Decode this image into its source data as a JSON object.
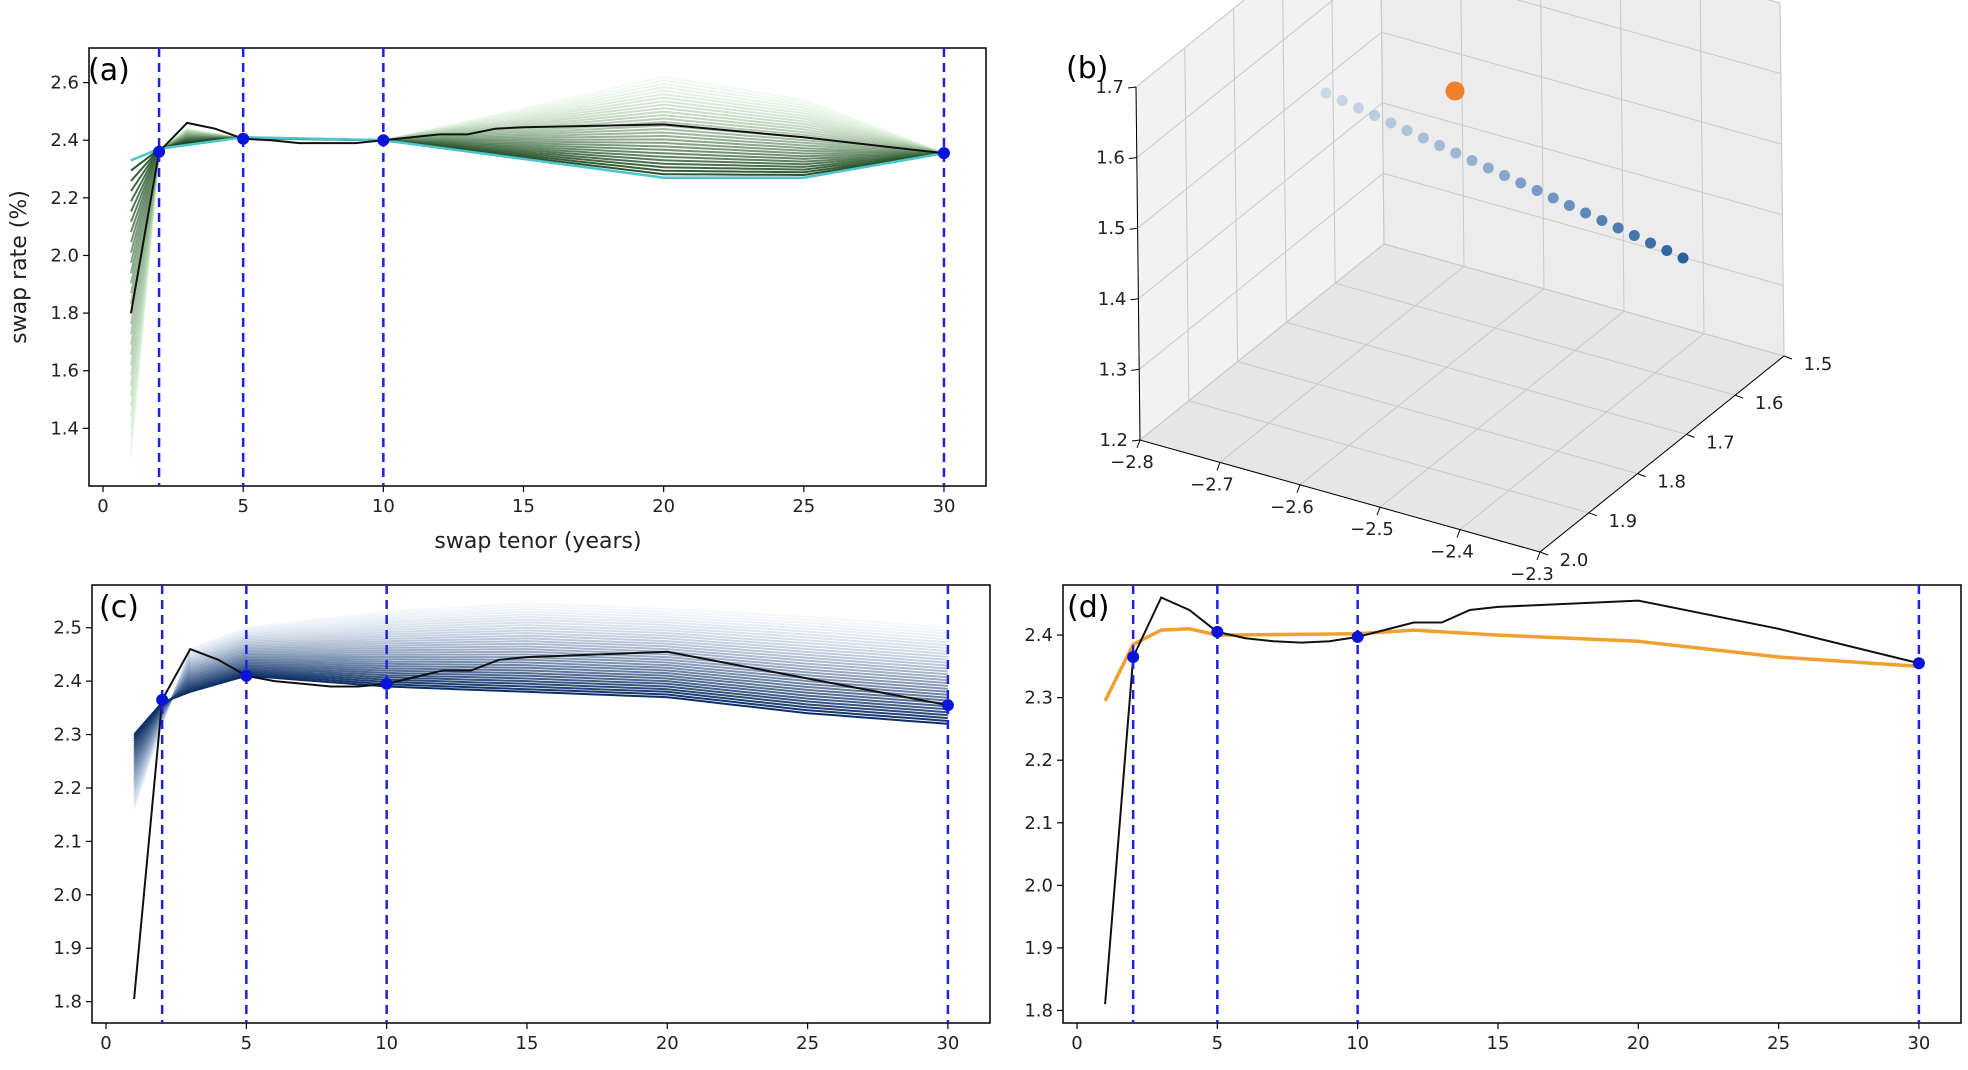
{
  "panels": {
    "a": {
      "label": "(a)",
      "xlabel": "swap tenor (years)",
      "ylabel": "swap rate (%)"
    },
    "b": {
      "label": "(b)"
    },
    "c": {
      "label": "(c)"
    },
    "d": {
      "label": "(d)"
    }
  },
  "colors": {
    "marker_line": "#2020e0",
    "marker_dot": "#0a14d8",
    "black_curve": "#111111",
    "cyan_curve": "#4cc6cc",
    "green_family": "#2e8b3a",
    "blue_family": "#1f4e9c",
    "orange_curve": "#f0a030",
    "scatter_blue": "#3a6fb0",
    "scatter_orange": "#f07f2a"
  },
  "chart_data": [
    {
      "panel": "a",
      "type": "line",
      "xlabel": "swap tenor (years)",
      "ylabel": "swap rate (%)",
      "xlim": [
        -0.5,
        31.5
      ],
      "ylim": [
        1.2,
        2.72
      ],
      "xticks": [
        0,
        5,
        10,
        15,
        20,
        25,
        30
      ],
      "yticks": [
        1.4,
        1.6,
        1.8,
        2.0,
        2.2,
        2.4,
        2.6
      ],
      "vlines": [
        2,
        5,
        10,
        30
      ],
      "markers": {
        "x": [
          2,
          5,
          10,
          30
        ],
        "y": [
          2.36,
          2.405,
          2.4,
          2.355
        ]
      },
      "black_curve": {
        "x": [
          1,
          2,
          3,
          4,
          5,
          6,
          7,
          8,
          9,
          10,
          12,
          13,
          14,
          15,
          20,
          25,
          30
        ],
        "y": [
          1.8,
          2.36,
          2.46,
          2.44,
          2.405,
          2.4,
          2.39,
          2.39,
          2.39,
          2.4,
          2.42,
          2.42,
          2.44,
          2.445,
          2.455,
          2.41,
          2.355
        ]
      },
      "cyan_curve": {
        "x": [
          1,
          2,
          5,
          10,
          20,
          25,
          30
        ],
        "y": [
          2.33,
          2.37,
          2.41,
          2.4,
          2.27,
          2.27,
          2.355
        ]
      },
      "family": {
        "count": 30,
        "color": "green",
        "anchors_x": [
          1,
          2,
          3,
          5,
          10,
          20,
          25,
          30
        ],
        "start": [
          1.3,
          2.36,
          2.44,
          2.405,
          2.4,
          2.62,
          2.54,
          2.355
        ],
        "end": [
          2.33,
          2.37,
          2.39,
          2.41,
          2.4,
          2.27,
          2.27,
          2.355
        ]
      }
    },
    {
      "panel": "b",
      "type": "scatter",
      "zticks": [
        1.2,
        1.3,
        1.4,
        1.5,
        1.6,
        1.7
      ],
      "xticks": [
        -2.8,
        -2.7,
        -2.6,
        -2.5,
        -2.4,
        -2.3
      ],
      "yticks": [
        1.5,
        1.6,
        1.7,
        1.8,
        1.9,
        2.0
      ],
      "xlim": [
        -2.8,
        -2.3
      ],
      "ylim": [
        1.5,
        2.0
      ],
      "zlim": [
        1.2,
        1.7
      ],
      "series": [
        {
          "color": "blue-gradient",
          "x": [
            -2.62,
            -2.45
          ],
          "y": [
            1.66,
            1.5
          ],
          "z": [
            1.74,
            1.53
          ],
          "count": 23
        },
        {
          "color": "orange",
          "x": [
            -2.58
          ],
          "y": [
            1.58
          ],
          "z": [
            1.72
          ]
        }
      ]
    },
    {
      "panel": "c",
      "type": "line",
      "xlim": [
        -0.5,
        31.5
      ],
      "ylim": [
        1.76,
        2.58
      ],
      "xticks": [
        0,
        5,
        10,
        15,
        20,
        25,
        30
      ],
      "yticks": [
        1.8,
        1.9,
        2.0,
        2.1,
        2.2,
        2.3,
        2.4,
        2.5
      ],
      "vlines": [
        2,
        5,
        10,
        30
      ],
      "markers": {
        "x": [
          2,
          5,
          10,
          30
        ],
        "y": [
          2.365,
          2.41,
          2.395,
          2.355
        ]
      },
      "black_curve": {
        "x": [
          1,
          2,
          3,
          4,
          5,
          6,
          7,
          8,
          9,
          10,
          12,
          13,
          14,
          15,
          20,
          25,
          30
        ],
        "y": [
          1.805,
          2.365,
          2.46,
          2.44,
          2.41,
          2.4,
          2.395,
          2.39,
          2.39,
          2.395,
          2.42,
          2.42,
          2.44,
          2.445,
          2.455,
          2.405,
          2.355
        ]
      },
      "family": {
        "count": 34,
        "color": "blue",
        "anchors_x": [
          1,
          2,
          3,
          5,
          10,
          15,
          20,
          25,
          30
        ],
        "start": [
          2.16,
          2.32,
          2.46,
          2.5,
          2.53,
          2.545,
          2.535,
          2.52,
          2.5
        ],
        "end": [
          2.3,
          2.36,
          2.38,
          2.41,
          2.39,
          2.38,
          2.37,
          2.34,
          2.32
        ]
      }
    },
    {
      "panel": "d",
      "type": "line",
      "xlim": [
        -0.5,
        31.5
      ],
      "ylim": [
        1.78,
        2.48
      ],
      "xticks": [
        0,
        5,
        10,
        15,
        20,
        25,
        30
      ],
      "yticks": [
        1.8,
        1.9,
        2.0,
        2.1,
        2.2,
        2.3,
        2.4
      ],
      "vlines": [
        2,
        5,
        10,
        30
      ],
      "markers": {
        "x": [
          2,
          5,
          10,
          30
        ],
        "y": [
          2.365,
          2.405,
          2.397,
          2.355
        ]
      },
      "black_curve": {
        "x": [
          1,
          2,
          3,
          4,
          5,
          6,
          7,
          8,
          9,
          10,
          12,
          13,
          14,
          15,
          20,
          25,
          30
        ],
        "y": [
          1.81,
          2.365,
          2.46,
          2.44,
          2.405,
          2.395,
          2.39,
          2.388,
          2.39,
          2.397,
          2.42,
          2.42,
          2.44,
          2.445,
          2.455,
          2.41,
          2.355
        ]
      },
      "orange_curve": {
        "x": [
          1,
          2,
          3,
          4,
          5,
          10,
          12,
          15,
          20,
          25,
          30
        ],
        "y": [
          2.295,
          2.385,
          2.408,
          2.41,
          2.4,
          2.402,
          2.408,
          2.4,
          2.39,
          2.365,
          2.35
        ]
      }
    }
  ]
}
